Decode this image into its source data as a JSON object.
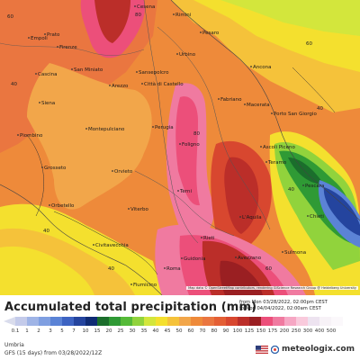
{
  "map": {
    "cities": [
      {
        "name": "Cesena"
      },
      {
        "name": "Rimini"
      },
      {
        "name": "Pesaro"
      },
      {
        "name": "Prato"
      },
      {
        "name": "Firenze"
      },
      {
        "name": "Empoli"
      },
      {
        "name": "Urbino"
      },
      {
        "name": "Ancona"
      },
      {
        "name": "San Miniato"
      },
      {
        "name": "Sansepolcro"
      },
      {
        "name": "Cascina"
      },
      {
        "name": "Città di Castello"
      },
      {
        "name": "Arezzo"
      },
      {
        "name": "Macerata"
      },
      {
        "name": "Siena"
      },
      {
        "name": "Porto San Giorgio"
      },
      {
        "name": "Fabriano"
      },
      {
        "name": "Perugia"
      },
      {
        "name": "Montepulciano"
      },
      {
        "name": "Piombino"
      },
      {
        "name": "Foligno"
      },
      {
        "name": "Ascoli Piceno"
      },
      {
        "name": "Grosseto"
      },
      {
        "name": "Teramo"
      },
      {
        "name": "Orvieto"
      },
      {
        "name": "Terni"
      },
      {
        "name": "Pescara"
      },
      {
        "name": "Orbetello"
      },
      {
        "name": "Viterbo"
      },
      {
        "name": "L'Aquila"
      },
      {
        "name": "Chieti"
      },
      {
        "name": "Civitavecchia"
      },
      {
        "name": "Fiumicino"
      },
      {
        "name": "Rieti"
      },
      {
        "name": "Roma"
      },
      {
        "name": "Guidonia"
      },
      {
        "name": "Avezzano"
      },
      {
        "name": "Sulmona"
      }
    ],
    "isolines": [
      "60",
      "40",
      "40",
      "60",
      "80",
      "40",
      "40",
      "40",
      "60",
      "80"
    ],
    "attribution": "Map data © OpenStreetMap contributors, rendering GIScience Research Group @ Heidelberg University"
  },
  "footer": {
    "title": "Accumulated total precipitation (mm)",
    "time_from": "from Mon 03/28/2022, 02:00pm CEST",
    "time_to": "to Mon 04/04/2022, 02:00am CEST",
    "region": "Umbria",
    "model": "GFS (15 days) from  03/28/2022/12Z",
    "brand": "meteologix.com"
  },
  "legend": {
    "colors": [
      "#d9dcec",
      "#c4cbea",
      "#9fb4e6",
      "#7f9fe1",
      "#5b83d6",
      "#3d63c2",
      "#24449e",
      "#0f2b74",
      "#1b6e2c",
      "#2f9a35",
      "#55ba38",
      "#91d33c",
      "#d3e63c",
      "#f4e02e",
      "#f5c23a",
      "#f2a64a",
      "#ee8a3a",
      "#ea7640",
      "#e45f35",
      "#d8472f",
      "#bb2e29",
      "#9a1f22",
      "#ec4f7a",
      "#f07aa0",
      "#f6a7c4",
      "#f9cadc",
      "#ede3f0",
      "#f7f2f7",
      "#fbf8fb",
      "#ffffff"
    ],
    "labels": [
      "0.1",
      "1",
      "2",
      "3",
      "5",
      "7",
      "10",
      "15",
      "20",
      "25",
      "30",
      "35",
      "40",
      "45",
      "50",
      "60",
      "70",
      "80",
      "90",
      "100",
      "125",
      "150",
      "175",
      "200",
      "250",
      "300",
      "400",
      "500"
    ]
  }
}
